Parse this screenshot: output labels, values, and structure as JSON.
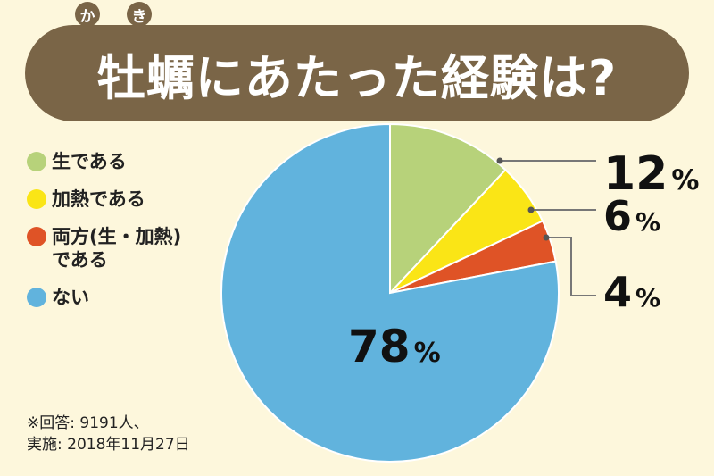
{
  "title": {
    "text": "牡蠣にあたった経験は?",
    "ruby_ka": "か",
    "ruby_ki": "き"
  },
  "chart_data": {
    "type": "pie",
    "categories": [
      "生である",
      "加熱である",
      "両方(生・加熱)\nである",
      "ない"
    ],
    "values": [
      12,
      6,
      4,
      78
    ],
    "unit": "%",
    "colors": [
      "#b7d27a",
      "#fae516",
      "#df5326",
      "#61b3dd"
    ],
    "legend_position": "left",
    "start_angle_deg": 0,
    "direction": "clockwise"
  },
  "footnote": "※回答: 9191人、\n実施: 2018年11月27日"
}
